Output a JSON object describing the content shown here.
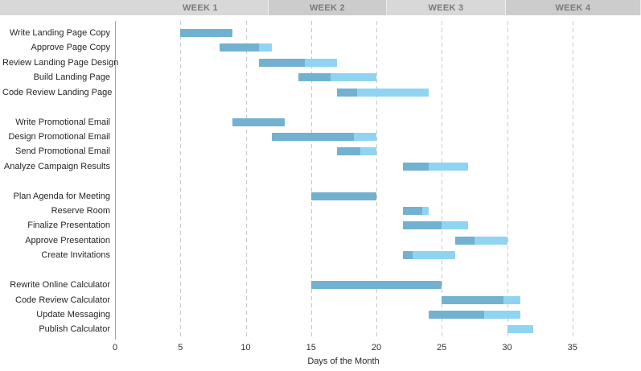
{
  "chart_data": {
    "type": "bar",
    "subtype": "gantt",
    "title": "",
    "xlabel": "Days of the Month",
    "xlim": [
      0,
      35
    ],
    "xticks": [
      0,
      5,
      10,
      15,
      20,
      25,
      30,
      35
    ],
    "grid": "dashed-vertical",
    "legend": "none",
    "week_headers": [
      {
        "label": "WEEK 1"
      },
      {
        "label": "WEEK 2"
      },
      {
        "label": "WEEK 3"
      },
      {
        "label": "WEEK 4"
      }
    ],
    "colors": {
      "bar_complete": "#72b1d0",
      "bar_remaining": "#8fd4f1",
      "header_light": "#d8d8d8",
      "header_dark": "#cccccc",
      "header_text": "#7a7a7a",
      "gridline": "#c9c9c9",
      "axis_line": "#a5a5a5"
    },
    "groups": [
      {
        "tasks": [
          {
            "label": "Write Landing Page Copy",
            "start": 5,
            "end": 9,
            "complete_until": 9
          },
          {
            "label": "Approve Page Copy",
            "start": 8,
            "end": 12,
            "complete_until": 11
          },
          {
            "label": "Review Landing Page Design",
            "start": 11,
            "end": 17,
            "complete_until": 14.5
          },
          {
            "label": "Build Landing Page",
            "start": 14,
            "end": 20,
            "complete_until": 16.5
          },
          {
            "label": "Code Review Landing Page",
            "start": 17,
            "end": 24,
            "complete_until": 18.5
          }
        ]
      },
      {
        "tasks": [
          {
            "label": "Write Promotional Email",
            "start": 9,
            "end": 13,
            "complete_until": 13
          },
          {
            "label": "Design Promotional Email",
            "start": 12,
            "end": 20,
            "complete_until": 18.25
          },
          {
            "label": "Send Promotional Email",
            "start": 17,
            "end": 20,
            "complete_until": 18.75
          },
          {
            "label": "Analyze Campaign Results",
            "start": 22,
            "end": 27,
            "complete_until": 24
          }
        ]
      },
      {
        "tasks": [
          {
            "label": "Plan Agenda for Meeting",
            "start": 15,
            "end": 20,
            "complete_until": 20
          },
          {
            "label": "Reserve Room",
            "start": 22,
            "end": 24,
            "complete_until": 23.5
          },
          {
            "label": "Finalize Presentation",
            "start": 22,
            "end": 27,
            "complete_until": 25
          },
          {
            "label": "Approve Presentation",
            "start": 26,
            "end": 30,
            "complete_until": 27.5
          },
          {
            "label": "Create Invitations",
            "start": 22,
            "end": 26,
            "complete_until": 22.75
          }
        ]
      },
      {
        "tasks": [
          {
            "label": "Rewrite Online Calculator",
            "start": 15,
            "end": 25,
            "complete_until": 25
          },
          {
            "label": "Code Review Calculator",
            "start": 25,
            "end": 31,
            "complete_until": 29.75
          },
          {
            "label": "Update Messaging",
            "start": 24,
            "end": 31,
            "complete_until": 28.25
          },
          {
            "label": "Publish Calculator",
            "start": 30,
            "end": 32,
            "complete_until": 30
          }
        ]
      }
    ]
  }
}
